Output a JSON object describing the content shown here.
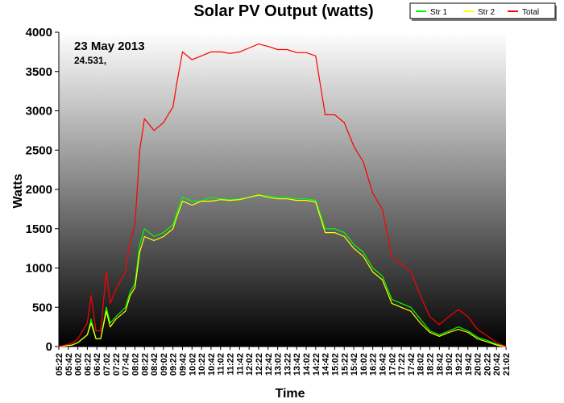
{
  "chart_data": {
    "type": "line",
    "title": "Solar PV Output (watts)",
    "xlabel": "Time",
    "ylabel": "Watts",
    "ylim": [
      0,
      4000
    ],
    "y_ticks": [
      "0",
      "500",
      "1000",
      "1500",
      "2000",
      "2500",
      "3000",
      "3500",
      "4000"
    ],
    "x_ticks": [
      "05:22",
      "05:42",
      "06:02",
      "06:22",
      "06:42",
      "07:02",
      "07:22",
      "07:42",
      "08:02",
      "08:22",
      "08:42",
      "09:02",
      "09:22",
      "09:42",
      "10:02",
      "10:22",
      "10:42",
      "11:02",
      "11:22",
      "11:42",
      "12:02",
      "12:22",
      "12:42",
      "13:02",
      "13:22",
      "13:42",
      "14:02",
      "14:22",
      "14:42",
      "15:02",
      "15:22",
      "15:42",
      "16:02",
      "16:22",
      "16:42",
      "17:02",
      "17:22",
      "17:42",
      "18:02",
      "18:22",
      "18:42",
      "19:02",
      "19:22",
      "19:42",
      "20:02",
      "20:22",
      "20:42",
      "21:02"
    ],
    "x_start": "05:22",
    "x_end": "21:02",
    "annotations": [
      "23 May 2013",
      "24.531,"
    ],
    "legend_position": "top-right",
    "grid": false,
    "background": "vertical gradient, white at top to black at bottom",
    "series": [
      {
        "name": "Str 1",
        "color": "#00ff00",
        "points": [
          [
            "05:22",
            0
          ],
          [
            "05:50",
            20
          ],
          [
            "06:02",
            50
          ],
          [
            "06:22",
            150
          ],
          [
            "06:30",
            350
          ],
          [
            "06:40",
            100
          ],
          [
            "06:50",
            100
          ],
          [
            "07:02",
            500
          ],
          [
            "07:10",
            300
          ],
          [
            "07:22",
            380
          ],
          [
            "07:42",
            500
          ],
          [
            "07:52",
            700
          ],
          [
            "08:02",
            800
          ],
          [
            "08:12",
            1300
          ],
          [
            "08:22",
            1500
          ],
          [
            "08:42",
            1400
          ],
          [
            "09:02",
            1450
          ],
          [
            "09:22",
            1550
          ],
          [
            "09:30",
            1700
          ],
          [
            "09:42",
            1900
          ],
          [
            "10:02",
            1850
          ],
          [
            "10:22",
            1850
          ],
          [
            "10:42",
            1900
          ],
          [
            "11:02",
            1880
          ],
          [
            "11:22",
            1870
          ],
          [
            "11:42",
            1880
          ],
          [
            "12:02",
            1900
          ],
          [
            "12:22",
            1920
          ],
          [
            "12:42",
            1920
          ],
          [
            "13:02",
            1900
          ],
          [
            "13:22",
            1900
          ],
          [
            "13:42",
            1880
          ],
          [
            "14:02",
            1880
          ],
          [
            "14:22",
            1860
          ],
          [
            "14:42",
            1500
          ],
          [
            "15:02",
            1500
          ],
          [
            "15:22",
            1450
          ],
          [
            "15:42",
            1300
          ],
          [
            "16:02",
            1200
          ],
          [
            "16:22",
            1000
          ],
          [
            "16:42",
            900
          ],
          [
            "17:02",
            600
          ],
          [
            "17:22",
            550
          ],
          [
            "17:42",
            500
          ],
          [
            "18:02",
            350
          ],
          [
            "18:22",
            200
          ],
          [
            "18:42",
            150
          ],
          [
            "19:02",
            200
          ],
          [
            "19:22",
            250
          ],
          [
            "19:42",
            200
          ],
          [
            "20:02",
            120
          ],
          [
            "20:22",
            80
          ],
          [
            "20:42",
            30
          ],
          [
            "21:02",
            0
          ]
        ]
      },
      {
        "name": "Str 2",
        "color": "#ffff00",
        "points": [
          [
            "05:22",
            0
          ],
          [
            "05:50",
            20
          ],
          [
            "06:02",
            50
          ],
          [
            "06:22",
            150
          ],
          [
            "06:30",
            300
          ],
          [
            "06:40",
            100
          ],
          [
            "06:50",
            100
          ],
          [
            "07:02",
            450
          ],
          [
            "07:10",
            250
          ],
          [
            "07:22",
            350
          ],
          [
            "07:42",
            450
          ],
          [
            "07:52",
            650
          ],
          [
            "08:02",
            750
          ],
          [
            "08:12",
            1200
          ],
          [
            "08:22",
            1400
          ],
          [
            "08:42",
            1350
          ],
          [
            "09:02",
            1400
          ],
          [
            "09:22",
            1500
          ],
          [
            "09:30",
            1650
          ],
          [
            "09:42",
            1850
          ],
          [
            "10:02",
            1800
          ],
          [
            "10:22",
            1850
          ],
          [
            "10:42",
            1850
          ],
          [
            "11:02",
            1870
          ],
          [
            "11:22",
            1860
          ],
          [
            "11:42",
            1870
          ],
          [
            "12:02",
            1900
          ],
          [
            "12:22",
            1930
          ],
          [
            "12:42",
            1900
          ],
          [
            "13:02",
            1880
          ],
          [
            "13:22",
            1880
          ],
          [
            "13:42",
            1860
          ],
          [
            "14:02",
            1860
          ],
          [
            "14:22",
            1840
          ],
          [
            "14:42",
            1450
          ],
          [
            "15:02",
            1450
          ],
          [
            "15:22",
            1400
          ],
          [
            "15:42",
            1250
          ],
          [
            "16:02",
            1150
          ],
          [
            "16:22",
            950
          ],
          [
            "16:42",
            850
          ],
          [
            "17:02",
            550
          ],
          [
            "17:22",
            500
          ],
          [
            "17:42",
            450
          ],
          [
            "18:02",
            300
          ],
          [
            "18:22",
            180
          ],
          [
            "18:42",
            130
          ],
          [
            "19:02",
            180
          ],
          [
            "19:22",
            220
          ],
          [
            "19:42",
            180
          ],
          [
            "20:02",
            100
          ],
          [
            "20:22",
            60
          ],
          [
            "20:42",
            20
          ],
          [
            "21:02",
            0
          ]
        ]
      },
      {
        "name": "Total",
        "color": "#ff0000",
        "points": [
          [
            "05:22",
            0
          ],
          [
            "05:50",
            40
          ],
          [
            "06:02",
            100
          ],
          [
            "06:22",
            300
          ],
          [
            "06:30",
            650
          ],
          [
            "06:40",
            200
          ],
          [
            "06:50",
            200
          ],
          [
            "07:02",
            950
          ],
          [
            "07:10",
            550
          ],
          [
            "07:22",
            730
          ],
          [
            "07:42",
            950
          ],
          [
            "07:52",
            1350
          ],
          [
            "08:02",
            1550
          ],
          [
            "08:12",
            2500
          ],
          [
            "08:22",
            2900
          ],
          [
            "08:42",
            2750
          ],
          [
            "09:02",
            2850
          ],
          [
            "09:22",
            3050
          ],
          [
            "09:30",
            3350
          ],
          [
            "09:42",
            3750
          ],
          [
            "10:02",
            3650
          ],
          [
            "10:22",
            3700
          ],
          [
            "10:42",
            3750
          ],
          [
            "11:02",
            3750
          ],
          [
            "11:22",
            3730
          ],
          [
            "11:42",
            3750
          ],
          [
            "12:02",
            3800
          ],
          [
            "12:22",
            3850
          ],
          [
            "12:42",
            3820
          ],
          [
            "13:02",
            3780
          ],
          [
            "13:22",
            3780
          ],
          [
            "13:42",
            3740
          ],
          [
            "14:02",
            3740
          ],
          [
            "14:22",
            3700
          ],
          [
            "14:42",
            2950
          ],
          [
            "15:02",
            2950
          ],
          [
            "15:22",
            2850
          ],
          [
            "15:42",
            2550
          ],
          [
            "16:02",
            2350
          ],
          [
            "16:22",
            1950
          ],
          [
            "16:42",
            1750
          ],
          [
            "17:02",
            1150
          ],
          [
            "17:22",
            1050
          ],
          [
            "17:42",
            950
          ],
          [
            "18:02",
            650
          ],
          [
            "18:22",
            380
          ],
          [
            "18:42",
            280
          ],
          [
            "19:02",
            380
          ],
          [
            "19:22",
            470
          ],
          [
            "19:42",
            380
          ],
          [
            "20:02",
            220
          ],
          [
            "20:22",
            140
          ],
          [
            "20:42",
            50
          ],
          [
            "21:02",
            0
          ]
        ]
      }
    ]
  }
}
